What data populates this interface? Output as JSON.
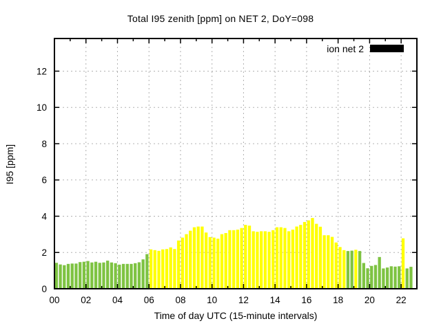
{
  "window": {
    "title": "Total I95 zenith [ppm] on NET 2, DoY=098"
  },
  "chart_data": {
    "type": "bar",
    "title": "Total I95 zenith [ppm] on NET 2, DoY=098",
    "xlabel": "Time of day UTC (15-minute intervals)",
    "ylabel": "I95 [ppm]",
    "interval_minutes": 15,
    "x_start_hour": 0,
    "xlim_hours": [
      0,
      23
    ],
    "ylim": [
      0,
      13.8
    ],
    "ytick_values": [
      0,
      2,
      4,
      6,
      8,
      10,
      12
    ],
    "ytick_labels": [
      "0",
      "2",
      "4",
      "6",
      "8",
      "10",
      "12"
    ],
    "xtick_hours": [
      0,
      2,
      4,
      6,
      8,
      10,
      12,
      14,
      16,
      18,
      20,
      22
    ],
    "xtick_labels": [
      "00",
      "02",
      "04",
      "06",
      "08",
      "10",
      "12",
      "14",
      "16",
      "18",
      "20",
      "22"
    ],
    "xminor_tick_hours": [
      1,
      3,
      5,
      7,
      9,
      11,
      13,
      15,
      17,
      19,
      21
    ],
    "grid": true,
    "grid_color": "#b0b0b0",
    "legend": {
      "label": "ion net 2",
      "swatch_color": "#000000",
      "position": "top-right"
    },
    "bar_color_map": {
      "g": "#7ec342",
      "y": "#ffff00"
    },
    "values": [
      1.43,
      1.34,
      1.3,
      1.37,
      1.39,
      1.39,
      1.47,
      1.49,
      1.53,
      1.45,
      1.49,
      1.43,
      1.45,
      1.55,
      1.45,
      1.41,
      1.33,
      1.37,
      1.37,
      1.37,
      1.41,
      1.46,
      1.62,
      1.91,
      2.17,
      2.13,
      2.09,
      2.17,
      2.19,
      2.28,
      2.19,
      2.66,
      2.82,
      3.01,
      3.2,
      3.39,
      3.43,
      3.43,
      3.1,
      2.85,
      2.82,
      2.76,
      3.01,
      3.07,
      3.23,
      3.23,
      3.26,
      3.35,
      3.52,
      3.48,
      3.17,
      3.14,
      3.17,
      3.17,
      3.14,
      3.23,
      3.39,
      3.39,
      3.35,
      3.17,
      3.26,
      3.43,
      3.52,
      3.68,
      3.77,
      3.9,
      3.58,
      3.42,
      2.95,
      2.95,
      2.86,
      2.55,
      2.3,
      2.13,
      2.08,
      2.1,
      2.15,
      2.08,
      1.42,
      1.13,
      1.26,
      1.31,
      1.75,
      1.12,
      1.17,
      1.24,
      1.22,
      1.24,
      2.78,
      1.12,
      1.21
    ],
    "colors": [
      "g",
      "g",
      "g",
      "g",
      "g",
      "g",
      "g",
      "g",
      "g",
      "g",
      "g",
      "g",
      "g",
      "g",
      "g",
      "g",
      "g",
      "g",
      "g",
      "g",
      "g",
      "g",
      "g",
      "g",
      "y",
      "y",
      "y",
      "y",
      "y",
      "y",
      "y",
      "y",
      "y",
      "y",
      "y",
      "y",
      "y",
      "y",
      "y",
      "y",
      "y",
      "y",
      "y",
      "y",
      "y",
      "y",
      "y",
      "y",
      "y",
      "y",
      "y",
      "y",
      "y",
      "y",
      "y",
      "y",
      "y",
      "y",
      "y",
      "y",
      "y",
      "y",
      "y",
      "y",
      "y",
      "y",
      "y",
      "y",
      "y",
      "y",
      "y",
      "y",
      "y",
      "y",
      "g",
      "g",
      "y",
      "g",
      "g",
      "g",
      "g",
      "g",
      "g",
      "g",
      "g",
      "g",
      "g",
      "g",
      "y",
      "g",
      "g"
    ]
  }
}
